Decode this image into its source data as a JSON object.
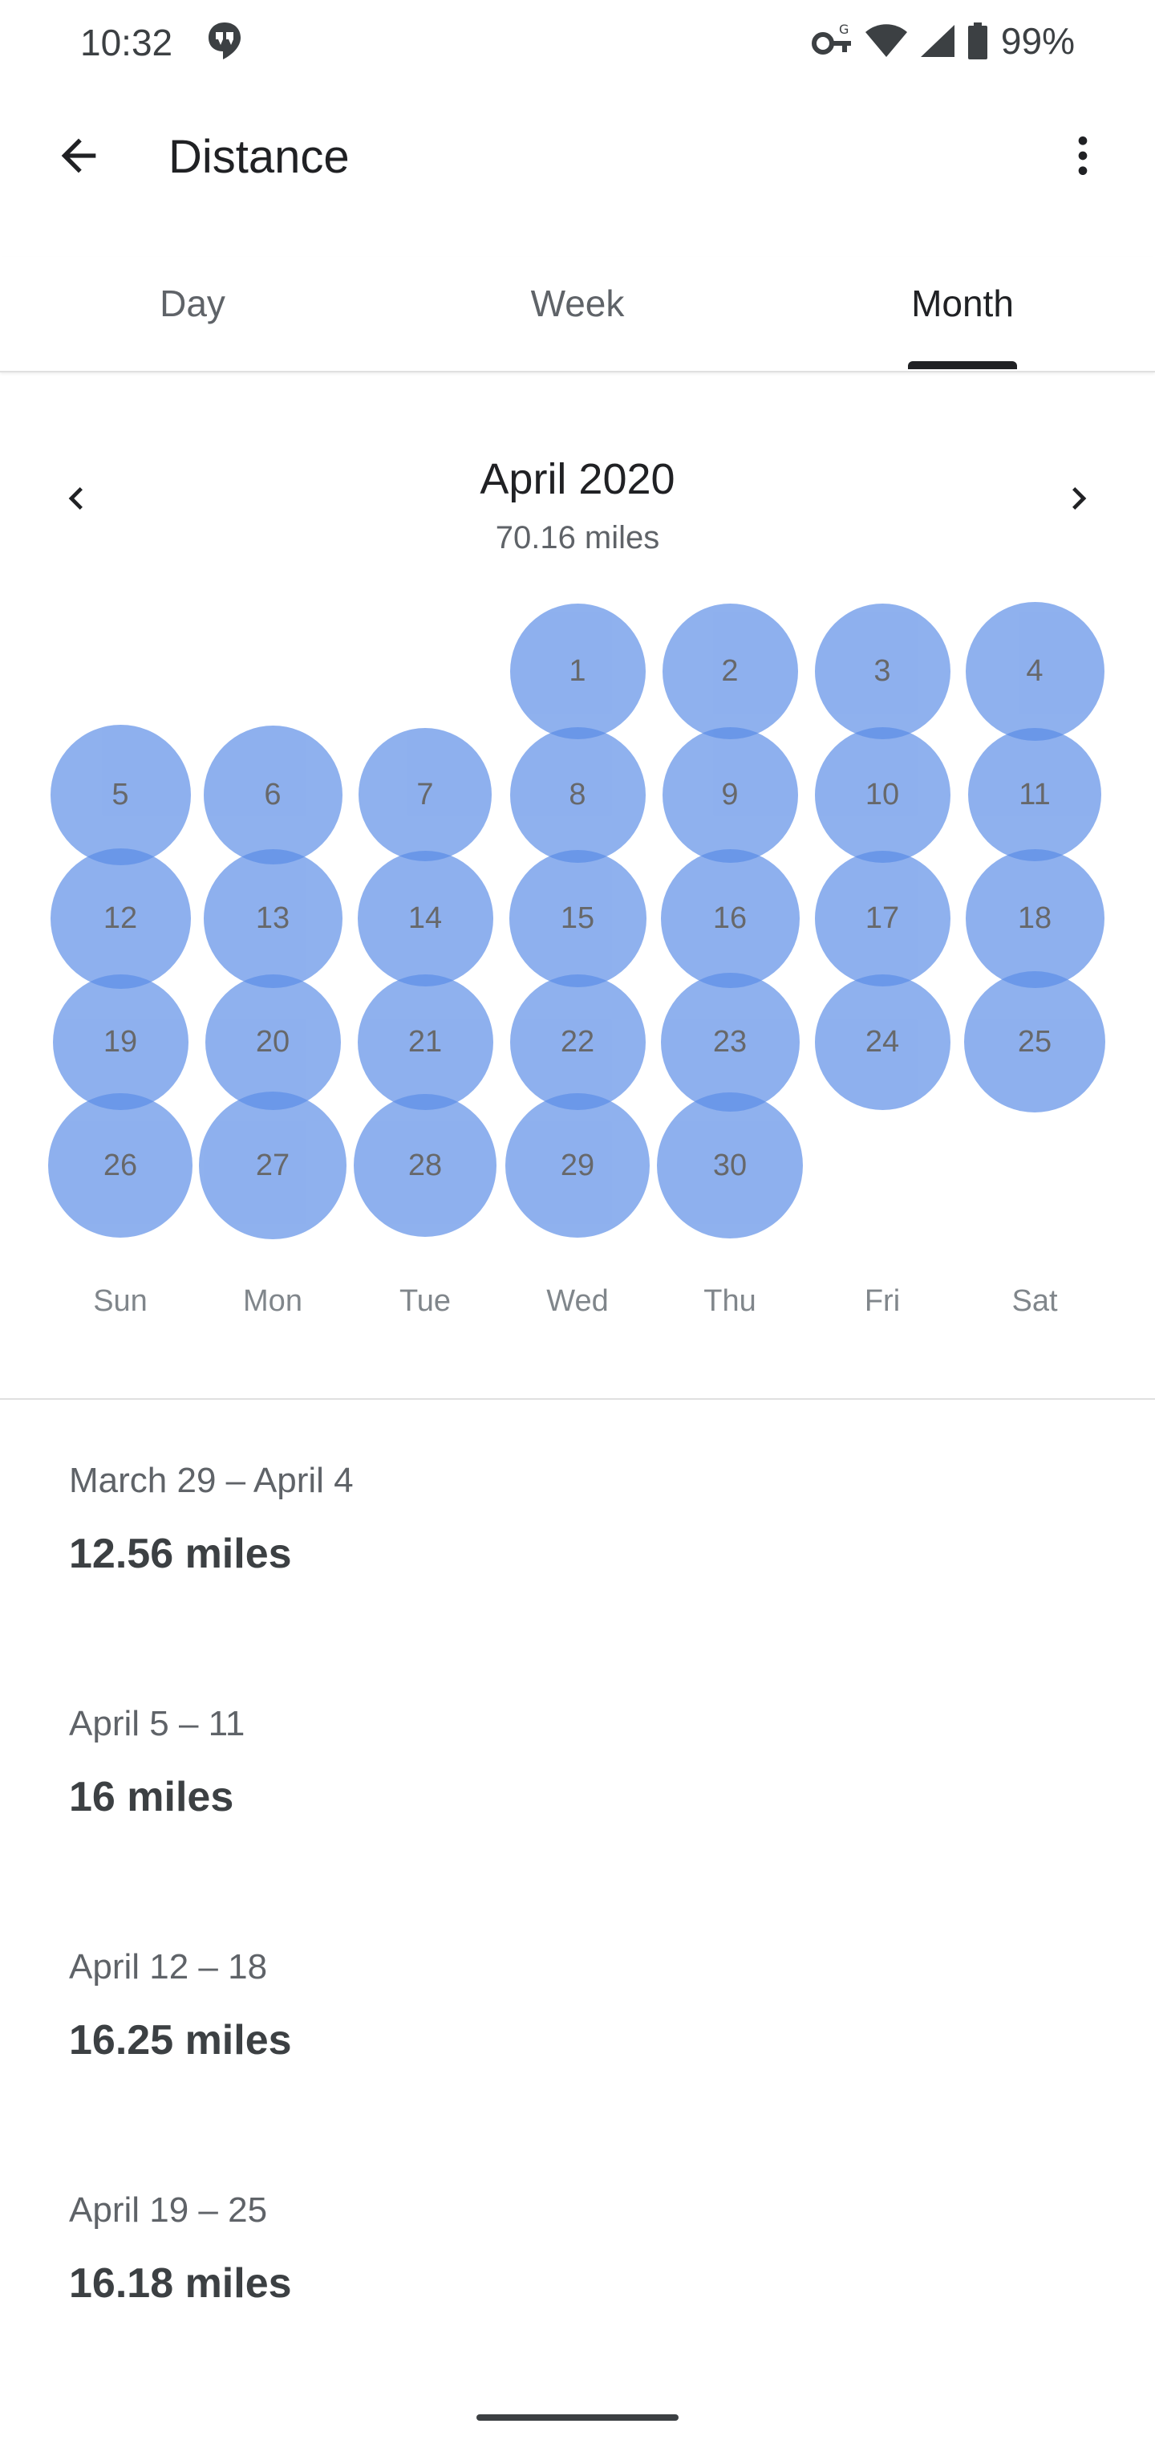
{
  "status_bar": {
    "time": "10:32",
    "battery": "99%",
    "icons": [
      "hangouts-icon",
      "vpn-key-icon",
      "wifi-icon",
      "cellular-signal-icon",
      "battery-icon"
    ]
  },
  "app_bar": {
    "title": "Distance",
    "back_icon": "arrow-back-icon",
    "more_icon": "more-vert-icon"
  },
  "tabs": [
    {
      "label": "Day",
      "active": false
    },
    {
      "label": "Week",
      "active": false
    },
    {
      "label": "Month",
      "active": true
    }
  ],
  "month": {
    "title": "April 2020",
    "total": "70.16 miles",
    "first_weekday_index": 3,
    "days": [
      1,
      2,
      3,
      4,
      5,
      6,
      7,
      8,
      9,
      10,
      11,
      12,
      13,
      14,
      15,
      16,
      17,
      18,
      19,
      20,
      21,
      22,
      23,
      24,
      25,
      26,
      27,
      28,
      29,
      30
    ],
    "day_circle_scale": [
      0.94,
      0.94,
      0.94,
      0.96,
      0.97,
      0.96,
      0.92,
      0.94,
      0.94,
      0.94,
      0.92,
      0.97,
      0.96,
      0.94,
      0.95,
      0.96,
      0.94,
      0.96,
      0.94,
      0.94,
      0.94,
      0.94,
      0.96,
      0.94,
      0.98,
      1.0,
      1.02,
      0.99,
      1.0,
      1.01
    ],
    "weekday_labels": [
      "Sun",
      "Mon",
      "Tue",
      "Wed",
      "Thu",
      "Fri",
      "Sat"
    ]
  },
  "colors": {
    "circle_fill": "#5a8ce6",
    "circle_opacity": 0.68,
    "active_tab_indicator": "#202124"
  },
  "weeks": [
    {
      "range": "March 29 – April 4",
      "value": "12.56 miles"
    },
    {
      "range": "April 5 – 11",
      "value": "16 miles"
    },
    {
      "range": "April 12 – 18",
      "value": "16.25 miles"
    },
    {
      "range": "April 19 – 25",
      "value": "16.18 miles"
    }
  ]
}
